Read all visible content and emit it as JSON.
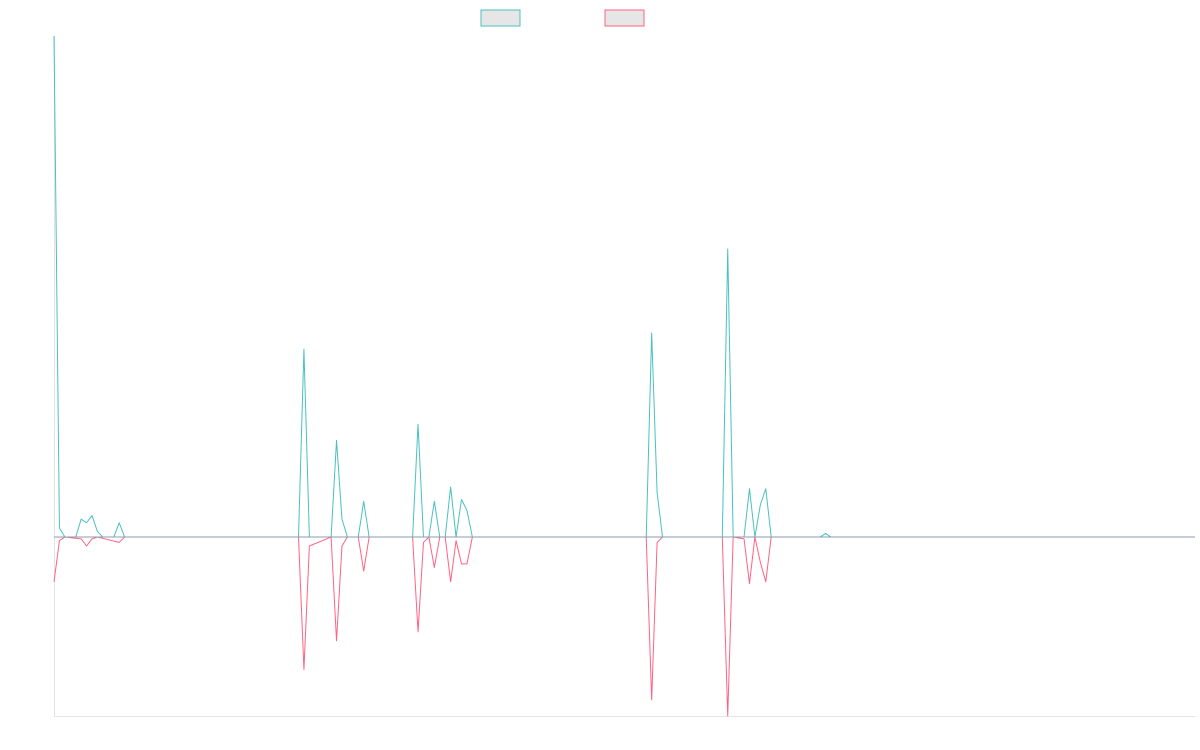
{
  "chart_data": {
    "type": "line",
    "title": "",
    "xlabel": "",
    "ylabel": "",
    "grid": false,
    "legend_position": "top-center",
    "ylim": [
      -100,
      280
    ],
    "xlim": [
      0,
      210
    ],
    "colors": {
      "series_a": "#4bc0c0",
      "series_b": "#ff6384",
      "baseline": "#8a9bb0",
      "axis": "#e3e3e3"
    },
    "series": [
      {
        "key": "a",
        "color": "#4bc0c0",
        "points": [
          [
            0,
            280
          ],
          [
            1,
            5
          ],
          [
            2,
            0
          ],
          [
            4,
            0
          ],
          [
            5,
            10
          ],
          [
            6,
            8
          ],
          [
            7,
            12
          ],
          [
            8,
            3
          ],
          [
            9,
            0
          ],
          [
            11,
            0
          ],
          [
            12,
            8
          ],
          [
            13,
            0
          ],
          [
            45,
            0
          ],
          [
            46,
            105
          ],
          [
            47,
            0
          ],
          [
            51,
            0
          ],
          [
            52,
            54
          ],
          [
            53,
            10
          ],
          [
            54,
            0
          ],
          [
            56,
            0
          ],
          [
            57,
            20
          ],
          [
            58,
            0
          ],
          [
            66,
            0
          ],
          [
            67,
            63
          ],
          [
            68,
            0
          ],
          [
            69,
            0
          ],
          [
            70,
            20
          ],
          [
            71,
            0
          ],
          [
            72,
            0
          ],
          [
            73,
            28
          ],
          [
            74,
            0
          ],
          [
            75,
            21
          ],
          [
            76,
            15
          ],
          [
            77,
            0
          ],
          [
            109,
            0
          ],
          [
            110,
            114
          ],
          [
            111,
            25
          ],
          [
            112,
            0
          ],
          [
            123,
            0
          ],
          [
            124,
            161
          ],
          [
            125,
            0
          ],
          [
            127,
            0
          ],
          [
            128,
            27
          ],
          [
            129,
            0
          ],
          [
            130,
            18
          ],
          [
            131,
            27
          ],
          [
            132,
            0
          ],
          [
            141,
            0
          ],
          [
            142,
            2
          ],
          [
            143,
            0
          ],
          [
            210,
            0
          ]
        ]
      },
      {
        "key": "b",
        "color": "#ff6384",
        "points": [
          [
            0,
            -25
          ],
          [
            1,
            -2
          ],
          [
            2,
            0
          ],
          [
            5,
            -1
          ],
          [
            6,
            -5
          ],
          [
            7,
            -1
          ],
          [
            8,
            0
          ],
          [
            12,
            -3
          ],
          [
            13,
            0
          ],
          [
            45,
            0
          ],
          [
            46,
            -74
          ],
          [
            47,
            -5
          ],
          [
            51,
            0
          ],
          [
            52,
            -58
          ],
          [
            53,
            -5
          ],
          [
            54,
            0
          ],
          [
            56,
            0
          ],
          [
            57,
            -19
          ],
          [
            58,
            0
          ],
          [
            66,
            0
          ],
          [
            67,
            -53
          ],
          [
            68,
            -3
          ],
          [
            69,
            0
          ],
          [
            70,
            -17
          ],
          [
            71,
            0
          ],
          [
            72,
            0
          ],
          [
            73,
            -25
          ],
          [
            74,
            -2
          ],
          [
            75,
            -15
          ],
          [
            76,
            -15
          ],
          [
            77,
            0
          ],
          [
            109,
            0
          ],
          [
            110,
            -91
          ],
          [
            111,
            -3
          ],
          [
            112,
            0
          ],
          [
            123,
            0
          ],
          [
            124,
            -100
          ],
          [
            125,
            0
          ],
          [
            127,
            -1
          ],
          [
            128,
            -26
          ],
          [
            129,
            0
          ],
          [
            130,
            -14
          ],
          [
            131,
            -25
          ],
          [
            132,
            0
          ],
          [
            210,
            0
          ]
        ]
      },
      {
        "key": "baseline",
        "color": "#8a9bb0",
        "points": [
          [
            0,
            0
          ],
          [
            210,
            0
          ]
        ]
      }
    ]
  }
}
